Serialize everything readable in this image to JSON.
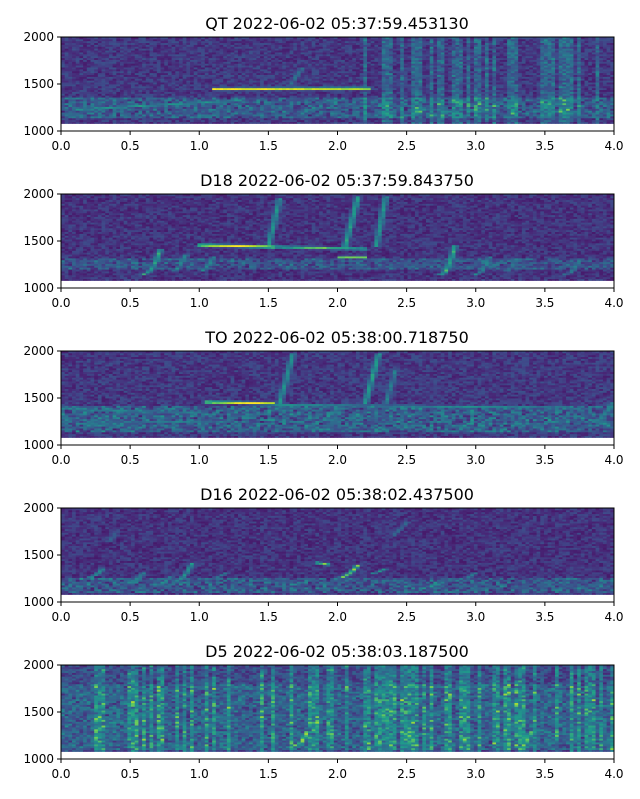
{
  "colors": {
    "background": "#440154",
    "viridis": [
      "#440154",
      "#482777",
      "#3f4a8a",
      "#31678e",
      "#26838f",
      "#1f9d8a",
      "#6cce5a",
      "#b6de2b",
      "#fee825"
    ]
  },
  "chart_data": [
    {
      "type": "heatmap",
      "title": "QT 2022-06-02 05:37:59.453130",
      "xlim": [
        0.0,
        4.0
      ],
      "ylim": [
        1000,
        2000
      ],
      "x_ticks": [
        "0.0",
        "0.5",
        "1.0",
        "1.5",
        "2.0",
        "2.5",
        "3.0",
        "3.5",
        "4.0"
      ],
      "y_ticks": [
        "1000",
        "1500",
        "2000"
      ],
      "data_ylim": [
        1080,
        2000
      ],
      "baseline": 0.22,
      "band": [
        1150,
        1350,
        0.28
      ],
      "vertical_stripes": {
        "from": 2.2,
        "to": 4.0,
        "intensity": 0.18
      },
      "features": [
        {
          "kind": "tone",
          "x": [
            1.1,
            2.25
          ],
          "y": [
            1450,
            1455
          ],
          "intensity": 0.95
        },
        {
          "kind": "tone",
          "x": [
            0.1,
            1.3
          ],
          "y": [
            1230,
            1330
          ],
          "intensity": 0.55
        },
        {
          "kind": "sweep",
          "x": [
            1.65,
            1.75
          ],
          "y": [
            1480,
            1680
          ],
          "intensity": 0.4
        }
      ]
    },
    {
      "type": "heatmap",
      "title": "D18 2022-06-02 05:37:59.843750",
      "xlim": [
        0.0,
        4.0
      ],
      "ylim": [
        1000,
        2000
      ],
      "x_ticks": [
        "0.0",
        "0.5",
        "1.0",
        "1.5",
        "2.0",
        "2.5",
        "3.0",
        "3.5",
        "4.0"
      ],
      "y_ticks": [
        "1000",
        "1500",
        "2000"
      ],
      "data_ylim": [
        1080,
        2000
      ],
      "baseline": 0.2,
      "band": [
        1200,
        1320,
        0.25
      ],
      "vertical_stripes": null,
      "features": [
        {
          "kind": "tone",
          "x": [
            1.0,
            1.55
          ],
          "y": [
            1460,
            1440
          ],
          "intensity": 1.0
        },
        {
          "kind": "tone",
          "x": [
            1.55,
            2.2
          ],
          "y": [
            1440,
            1420
          ],
          "intensity": 0.7
        },
        {
          "kind": "sweep",
          "x": [
            1.5,
            1.58
          ],
          "y": [
            1440,
            1950
          ],
          "intensity": 0.55
        },
        {
          "kind": "sweep",
          "x": [
            2.05,
            2.15
          ],
          "y": [
            1420,
            1980
          ],
          "intensity": 0.6
        },
        {
          "kind": "sweep",
          "x": [
            2.28,
            2.35
          ],
          "y": [
            1440,
            1980
          ],
          "intensity": 0.55
        },
        {
          "kind": "arc",
          "x": [
            0.6,
            0.72
          ],
          "y": [
            1150,
            1420
          ],
          "intensity": 0.6
        },
        {
          "kind": "arc",
          "x": [
            0.8,
            0.9
          ],
          "y": [
            1180,
            1350
          ],
          "intensity": 0.5
        },
        {
          "kind": "arc",
          "x": [
            1.0,
            1.1
          ],
          "y": [
            1180,
            1330
          ],
          "intensity": 0.5
        },
        {
          "kind": "arc",
          "x": [
            2.75,
            2.85
          ],
          "y": [
            1150,
            1460
          ],
          "intensity": 0.65
        },
        {
          "kind": "arc",
          "x": [
            3.0,
            3.1
          ],
          "y": [
            1150,
            1340
          ],
          "intensity": 0.5
        },
        {
          "kind": "arc",
          "x": [
            3.2,
            3.3
          ],
          "y": [
            1180,
            1320
          ],
          "intensity": 0.45
        },
        {
          "kind": "arc",
          "x": [
            3.65,
            3.75
          ],
          "y": [
            1150,
            1300
          ],
          "intensity": 0.45
        },
        {
          "kind": "tone",
          "x": [
            2.0,
            2.2
          ],
          "y": [
            1330,
            1330
          ],
          "intensity": 0.7
        }
      ]
    },
    {
      "type": "heatmap",
      "title": "TO 2022-06-02 05:38:00.718750",
      "xlim": [
        0.0,
        4.0
      ],
      "ylim": [
        1000,
        2000
      ],
      "x_ticks": [
        "0.0",
        "0.5",
        "1.0",
        "1.5",
        "2.0",
        "2.5",
        "3.0",
        "3.5",
        "4.0"
      ],
      "y_ticks": [
        "1000",
        "1500",
        "2000"
      ],
      "data_ylim": [
        1080,
        2000
      ],
      "baseline": 0.22,
      "band": [
        1150,
        1420,
        0.32
      ],
      "vertical_stripes": null,
      "features": [
        {
          "kind": "tone",
          "x": [
            1.05,
            1.55
          ],
          "y": [
            1460,
            1445
          ],
          "intensity": 1.0
        },
        {
          "kind": "tone",
          "x": [
            1.55,
            3.7
          ],
          "y": [
            1430,
            1400
          ],
          "intensity": 0.5
        },
        {
          "kind": "sweep",
          "x": [
            1.58,
            1.68
          ],
          "y": [
            1440,
            1980
          ],
          "intensity": 0.55
        },
        {
          "kind": "sweep",
          "x": [
            2.2,
            2.3
          ],
          "y": [
            1440,
            1980
          ],
          "intensity": 0.6
        },
        {
          "kind": "sweep",
          "x": [
            2.35,
            2.42
          ],
          "y": [
            1440,
            1800
          ],
          "intensity": 0.45
        },
        {
          "kind": "arc",
          "x": [
            1.85,
            2.0
          ],
          "y": [
            1250,
            1420
          ],
          "intensity": 0.5
        },
        {
          "kind": "arc",
          "x": [
            3.85,
            3.98
          ],
          "y": [
            1250,
            1450
          ],
          "intensity": 0.5
        },
        {
          "kind": "tone",
          "x": [
            0.1,
            1.0
          ],
          "y": [
            1380,
            1350
          ],
          "intensity": 0.45
        },
        {
          "kind": "tone",
          "x": [
            0.1,
            1.2
          ],
          "y": [
            1230,
            1260
          ],
          "intensity": 0.45
        }
      ]
    },
    {
      "type": "heatmap",
      "title": "D16 2022-06-02 05:38:02.437500",
      "xlim": [
        0.0,
        4.0
      ],
      "ylim": [
        1000,
        2000
      ],
      "x_ticks": [
        "0.0",
        "0.5",
        "1.0",
        "1.5",
        "2.0",
        "2.5",
        "3.0",
        "3.5",
        "4.0"
      ],
      "y_ticks": [
        "1000",
        "1500",
        "2000"
      ],
      "data_ylim": [
        1080,
        2000
      ],
      "baseline": 0.2,
      "band": [
        1100,
        1260,
        0.3
      ],
      "vertical_stripes": null,
      "features": [
        {
          "kind": "arc",
          "x": [
            0.15,
            0.3
          ],
          "y": [
            1250,
            1350
          ],
          "intensity": 0.55
        },
        {
          "kind": "arc",
          "x": [
            0.45,
            0.6
          ],
          "y": [
            1200,
            1320
          ],
          "intensity": 0.5
        },
        {
          "kind": "arc",
          "x": [
            0.7,
            0.8
          ],
          "y": [
            1200,
            1280
          ],
          "intensity": 0.5
        },
        {
          "kind": "arc",
          "x": [
            0.82,
            0.95
          ],
          "y": [
            1220,
            1420
          ],
          "intensity": 0.55
        },
        {
          "kind": "arc",
          "x": [
            1.05,
            1.2
          ],
          "y": [
            1250,
            1320
          ],
          "intensity": 0.45
        },
        {
          "kind": "tone",
          "x": [
            1.85,
            1.95
          ],
          "y": [
            1420,
            1400
          ],
          "intensity": 0.75
        },
        {
          "kind": "arc",
          "x": [
            2.0,
            2.15
          ],
          "y": [
            1260,
            1400
          ],
          "intensity": 0.75
        },
        {
          "kind": "arc",
          "x": [
            2.2,
            2.35
          ],
          "y": [
            1300,
            1360
          ],
          "intensity": 0.6
        },
        {
          "kind": "arc",
          "x": [
            2.62,
            2.72
          ],
          "y": [
            1150,
            1220
          ],
          "intensity": 0.6
        },
        {
          "kind": "arc",
          "x": [
            2.9,
            3.0
          ],
          "y": [
            1250,
            1320
          ],
          "intensity": 0.45
        },
        {
          "kind": "arc",
          "x": [
            3.5,
            3.6
          ],
          "y": [
            1180,
            1250
          ],
          "intensity": 0.4
        },
        {
          "kind": "sweep",
          "x": [
            2.4,
            2.5
          ],
          "y": [
            1700,
            1850
          ],
          "intensity": 0.35
        },
        {
          "kind": "sweep",
          "x": [
            0.35,
            0.4
          ],
          "y": [
            1650,
            1750
          ],
          "intensity": 0.35
        }
      ]
    },
    {
      "type": "heatmap",
      "title": "D5 2022-06-02 05:38:03.187500",
      "xlim": [
        0.0,
        4.0
      ],
      "ylim": [
        1000,
        2000
      ],
      "x_ticks": [
        "0.0",
        "0.5",
        "1.0",
        "1.5",
        "2.0",
        "2.5",
        "3.0",
        "3.5",
        "4.0"
      ],
      "y_ticks": [
        "1000",
        "1500",
        "2000"
      ],
      "data_ylim": [
        1080,
        2000
      ],
      "baseline": 0.3,
      "band": [
        1100,
        1800,
        0.18
      ],
      "vertical_stripes": {
        "from": 0.25,
        "to": 4.0,
        "intensity": 0.2
      },
      "features": [
        {
          "kind": "arc",
          "x": [
            1.7,
            1.78
          ],
          "y": [
            1150,
            1300
          ],
          "intensity": 0.8
        },
        {
          "kind": "arc",
          "x": [
            3.3,
            3.4
          ],
          "y": [
            1100,
            1300
          ],
          "intensity": 0.75
        },
        {
          "kind": "arc",
          "x": [
            0.35,
            0.42
          ],
          "y": [
            1350,
            1500
          ],
          "intensity": 0.5
        },
        {
          "kind": "arc",
          "x": [
            3.95,
            4.0
          ],
          "y": [
            1550,
            1700
          ],
          "intensity": 0.5
        },
        {
          "kind": "tone",
          "x": [
            2.2,
            2.35
          ],
          "y": [
            1400,
            1420
          ],
          "intensity": 0.45
        }
      ]
    }
  ]
}
